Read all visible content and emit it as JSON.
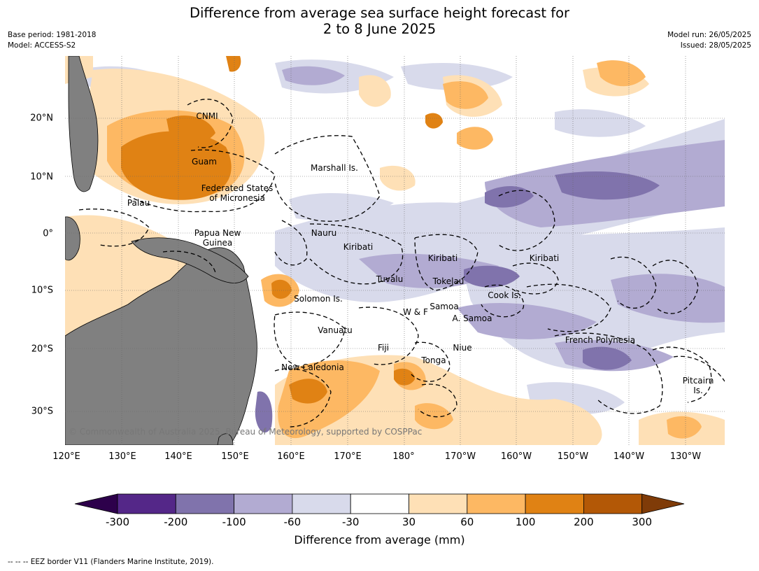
{
  "title": {
    "line1": "Difference from average sea surface height forecast for",
    "line2": "2 to 8 June 2025"
  },
  "meta": {
    "base_period": "Base period: 1981-2018",
    "model": "Model: ACCESS-S2",
    "model_run": "Model run: 26/05/2025",
    "issued": "Issued: 28/05/2025"
  },
  "axes": {
    "longitude_labels": [
      "120°E",
      "130°E",
      "140°E",
      "150°E",
      "160°E",
      "170°E",
      "180°",
      "170°W",
      "160°W",
      "150°W",
      "140°W",
      "130°W"
    ],
    "latitude_labels": [
      "20°N",
      "10°N",
      "0°",
      "10°S",
      "20°S",
      "30°S"
    ]
  },
  "places": {
    "cnmi": "CNMI",
    "guam": "Guam",
    "marshall": "Marshall Is.",
    "fsm1": "Federated States",
    "fsm2": "of Micronesia",
    "palau": "Palau",
    "png1": "Papua New",
    "png2": "Guinea",
    "nauru": "Nauru",
    "kiribati_w": "Kiribati",
    "kiribati_c": "Kiribati",
    "kiribati_e": "Kiribati",
    "tuvalu": "Tuvalu",
    "tokelau": "Tokelau",
    "cook": "Cook Is.",
    "solomon": "Solomon Is.",
    "wf": "W & F",
    "samoa": "Samoa",
    "asamoa": "A. Samoa",
    "vanuatu": "Vanuatu",
    "fiji": "Fiji",
    "niue": "Niue",
    "tonga": "Tonga",
    "frenchpoly": "French Polynesia",
    "newcal": "New Caledonia",
    "pitcairn1": "Pitcairn",
    "pitcairn2": "Is."
  },
  "copyright": "© Commonwealth of Australia 2025, Bureau of Meteorology, supported by COSPPac",
  "colorbar": {
    "label": "Difference from average (mm)",
    "ticks": [
      "-300",
      "-200",
      "-100",
      "-60",
      "-30",
      "30",
      "60",
      "100",
      "200",
      "300"
    ],
    "colors": {
      "extend_low": "#2d004b",
      "c1": "#542788",
      "c2": "#8073ac",
      "c3": "#b2abd2",
      "c4": "#d8daeb",
      "c5": "#ffffff",
      "c6": "#fee0b6",
      "c7": "#fdb863",
      "c8": "#e08214",
      "c9": "#b35806",
      "extend_high": "#7f3b08"
    }
  },
  "land_color": "#808080",
  "footnote": "--  --  -- EEZ border V11 (Flanders Marine Institute, 2019)."
}
